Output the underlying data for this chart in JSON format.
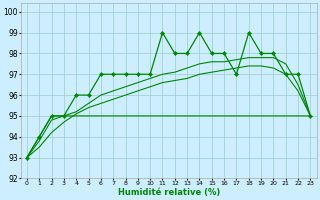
{
  "xlabel": "Humidité relative (%)",
  "xlim": [
    -0.5,
    23.5
  ],
  "ylim": [
    92,
    100.4
  ],
  "yticks": [
    92,
    93,
    94,
    95,
    96,
    97,
    98,
    99,
    100
  ],
  "xticks": [
    0,
    1,
    2,
    3,
    4,
    5,
    6,
    7,
    8,
    9,
    10,
    11,
    12,
    13,
    14,
    15,
    16,
    17,
    18,
    19,
    20,
    21,
    22,
    23
  ],
  "bg_color": "#cceeff",
  "grid_color": "#99cccc",
  "line_color": "#008800",
  "series_main": {
    "x": [
      0,
      1,
      2,
      3,
      4,
      5,
      6,
      7,
      8,
      9,
      10,
      11,
      12,
      13,
      14,
      15,
      16,
      17,
      18,
      19,
      20,
      21,
      22,
      23
    ],
    "y": [
      93,
      94,
      95,
      95,
      96,
      96,
      97,
      97,
      97,
      97,
      97,
      99,
      98,
      98,
      99,
      98,
      98,
      97,
      99,
      98,
      98,
      97,
      97,
      95
    ]
  },
  "series_smooth1": {
    "x": [
      0,
      1,
      2,
      3,
      4,
      5,
      6,
      7,
      8,
      9,
      10,
      11,
      12,
      13,
      14,
      15,
      16,
      17,
      18,
      19,
      20,
      21,
      22,
      23
    ],
    "y": [
      93,
      93.8,
      94.8,
      95.0,
      95.2,
      95.6,
      96.0,
      96.2,
      96.4,
      96.6,
      96.8,
      97.0,
      97.1,
      97.3,
      97.5,
      97.6,
      97.6,
      97.7,
      97.8,
      97.8,
      97.8,
      97.5,
      96.5,
      95.0
    ]
  },
  "series_smooth2": {
    "x": [
      0,
      1,
      2,
      3,
      4,
      5,
      6,
      7,
      8,
      9,
      10,
      11,
      12,
      13,
      14,
      15,
      16,
      17,
      18,
      19,
      20,
      21,
      22,
      23
    ],
    "y": [
      93,
      93.5,
      94.2,
      94.7,
      95.1,
      95.4,
      95.6,
      95.8,
      96.0,
      96.2,
      96.4,
      96.6,
      96.7,
      96.8,
      97.0,
      97.1,
      97.2,
      97.3,
      97.4,
      97.4,
      97.3,
      97.0,
      96.2,
      95.0
    ]
  },
  "series_flat": {
    "x": [
      0,
      1,
      2,
      3,
      4,
      5,
      6,
      7,
      8,
      9,
      10,
      11,
      12,
      13,
      14,
      15,
      16,
      17,
      18,
      19,
      20,
      21,
      22,
      23
    ],
    "y": [
      93,
      94,
      95,
      95,
      95,
      95,
      95,
      95,
      95,
      95,
      95,
      95,
      95,
      95,
      95,
      95,
      95,
      95,
      95,
      95,
      95,
      95,
      95,
      95
    ]
  }
}
